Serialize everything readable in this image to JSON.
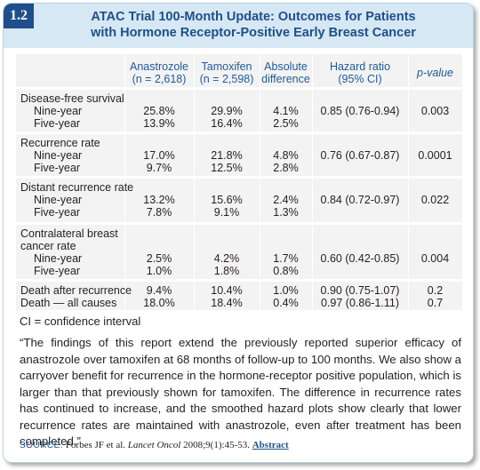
{
  "badge": "1.2",
  "title": {
    "line1": "ATAC Trial 100-Month Update: Outcomes for Patients",
    "line2": "with Hormone Receptor-Positive Early Breast Cancer"
  },
  "columns": [
    {
      "line1": "Anastrozole",
      "line2": "(n = 2,618)"
    },
    {
      "line1": "Tamoxifen",
      "line2": "(n = 2,598)"
    },
    {
      "line1": "Absolute",
      "line2": "difference"
    },
    {
      "line1": "Hazard ratio",
      "line2": "(95% CI)"
    },
    {
      "line1": "p-value",
      "line2": ""
    }
  ],
  "groups": [
    {
      "label": [
        "Disease-free survival"
      ],
      "rows": [
        {
          "label": "Nine-year",
          "anastrozole": "25.8%",
          "tamoxifen": "29.9%",
          "difference": "4.1%",
          "hazard": "0.85 (0.76-0.94)",
          "p": "0.003"
        },
        {
          "label": "Five-year",
          "anastrozole": "13.9%",
          "tamoxifen": "16.4%",
          "difference": "2.5%",
          "hazard": "",
          "p": ""
        }
      ]
    },
    {
      "label": [
        "Recurrence rate"
      ],
      "rows": [
        {
          "label": "Nine-year",
          "anastrozole": "17.0%",
          "tamoxifen": "21.8%",
          "difference": "4.8%",
          "hazard": "0.76 (0.67-0.87)",
          "p": "0.0001"
        },
        {
          "label": "Five-year",
          "anastrozole": "9.7%",
          "tamoxifen": "12.5%",
          "difference": "2.8%",
          "hazard": "",
          "p": ""
        }
      ]
    },
    {
      "label": [
        "Distant recurrence rate"
      ],
      "rows": [
        {
          "label": "Nine-year",
          "anastrozole": "13.2%",
          "tamoxifen": "15.6%",
          "difference": "2.4%",
          "hazard": "0.84 (0.72-0.97)",
          "p": "0.022"
        },
        {
          "label": "Five-year",
          "anastrozole": "7.8%",
          "tamoxifen": "9.1%",
          "difference": "1.3%",
          "hazard": "",
          "p": ""
        }
      ]
    },
    {
      "label": [
        "Contralateral breast",
        "cancer rate"
      ],
      "rows": [
        {
          "label": "Nine-year",
          "anastrozole": "2.5%",
          "tamoxifen": "4.2%",
          "difference": "1.7%",
          "hazard": "0.60 (0.42-0.85)",
          "p": "0.004"
        },
        {
          "label": "Five-year",
          "anastrozole": "1.0%",
          "tamoxifen": "1.8%",
          "difference": "0.8%",
          "hazard": "",
          "p": ""
        }
      ]
    },
    {
      "label": [],
      "rows": [
        {
          "label": "Death after recurrence",
          "anastrozole": "9.4%",
          "tamoxifen": "10.4%",
          "difference": "1.0%",
          "hazard": "0.90 (0.75-1.07)",
          "p": "0.2"
        },
        {
          "label": "Death — all causes",
          "anastrozole": "18.0%",
          "tamoxifen": "18.4%",
          "difference": "0.4%",
          "hazard": "0.97 (0.86-1.11)",
          "p": "0.7"
        }
      ]
    }
  ],
  "footnote": "CI = confidence interval",
  "quote": "“The findings of this report extend the previously reported superior efficacy of anastrozole over tamoxifen at 68 months of follow-up to 100 months. We also show a carryover benefit for recurrence in the hormone-receptor positive population, which is larger than that previously shown for tamoxifen. The difference in recurrence rates has continued to increase, and the smoothed hazard plots show clearly that lower recurrence rates are maintained with anastrozole, even after treatment has been completed.”",
  "source": {
    "label": "SOURCE:",
    "text": "Forbes JF et al.",
    "journal": "Lancet Oncol",
    "citation": "2008;9(1):45-53.",
    "link": "Abstract"
  }
}
